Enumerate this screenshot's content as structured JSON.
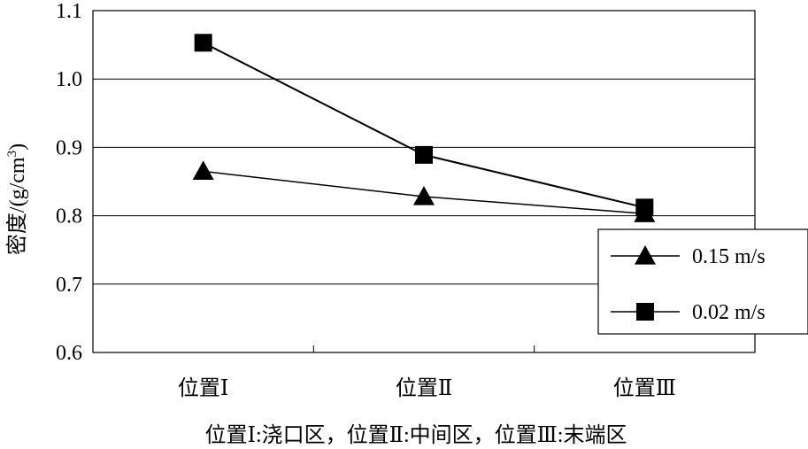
{
  "chart_data": {
    "type": "line",
    "categories": [
      "位置Ⅰ",
      "位置Ⅱ",
      "位置Ⅲ"
    ],
    "series": [
      {
        "name": "0.15 m/s",
        "marker": "triangle",
        "values": [
          0.865,
          0.828,
          0.803
        ]
      },
      {
        "name": "0.02 m/s",
        "marker": "square",
        "values": [
          1.053,
          0.889,
          0.812
        ]
      }
    ],
    "ylabel": "密度/(g/cm3)",
    "ylim": [
      0.6,
      1.1
    ],
    "yticks": [
      "0.6",
      "0.7",
      "0.8",
      "0.9",
      "1.0",
      "1.1"
    ],
    "grid": true,
    "legend_position": "right",
    "caption": "位置Ⅰ:浇口区，位置Ⅱ:中间区，位置Ⅲ:末端区",
    "colors": {
      "line": "#000000",
      "grid": "#000000",
      "background": "#ffffff"
    }
  }
}
